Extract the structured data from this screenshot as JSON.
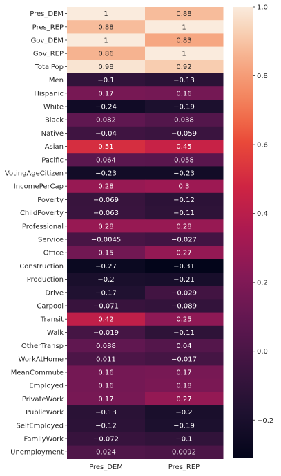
{
  "chart_data": {
    "type": "heatmap",
    "title": "",
    "columns": [
      "Pres_DEM",
      "Pres_REP"
    ],
    "rows": [
      "Pres_DEM",
      "Pres_REP",
      "Gov_DEM",
      "Gov_REP",
      "TotalPop",
      "Men",
      "Hispanic",
      "White",
      "Black",
      "Native",
      "Asian",
      "Pacific",
      "VotingAgeCitizen",
      "IncomePerCap",
      "Poverty",
      "ChildPoverty",
      "Professional",
      "Service",
      "Office",
      "Construction",
      "Production",
      "Drive",
      "Carpool",
      "Transit",
      "Walk",
      "OtherTransp",
      "WorkAtHome",
      "MeanCommute",
      "Employed",
      "PrivateWork",
      "PublicWork",
      "SelfEmployed",
      "FamilyWork",
      "Unemployment"
    ],
    "values": [
      [
        1,
        0.88
      ],
      [
        0.88,
        1
      ],
      [
        1,
        0.83
      ],
      [
        0.86,
        1
      ],
      [
        0.98,
        0.92
      ],
      [
        -0.1,
        -0.13
      ],
      [
        0.17,
        0.16
      ],
      [
        -0.24,
        -0.19
      ],
      [
        0.082,
        0.038
      ],
      [
        -0.04,
        -0.059
      ],
      [
        0.51,
        0.45
      ],
      [
        0.064,
        0.058
      ],
      [
        -0.23,
        -0.23
      ],
      [
        0.28,
        0.3
      ],
      [
        -0.069,
        -0.12
      ],
      [
        -0.063,
        -0.11
      ],
      [
        0.28,
        0.28
      ],
      [
        -0.0045,
        -0.027
      ],
      [
        0.15,
        0.27
      ],
      [
        -0.27,
        -0.31
      ],
      [
        -0.2,
        -0.21
      ],
      [
        -0.17,
        -0.029
      ],
      [
        -0.071,
        -0.089
      ],
      [
        0.42,
        0.25
      ],
      [
        -0.019,
        -0.11
      ],
      [
        0.088,
        0.04
      ],
      [
        0.011,
        -0.017
      ],
      [
        0.16,
        0.17
      ],
      [
        0.16,
        0.18
      ],
      [
        0.17,
        0.27
      ],
      [
        -0.13,
        -0.2
      ],
      [
        -0.12,
        -0.19
      ],
      [
        -0.072,
        -0.1
      ],
      [
        0.024,
        0.0092
      ]
    ],
    "colorbar": {
      "colormap": "rocket",
      "vmin": -0.31,
      "vmax": 1.0,
      "ticks": [
        1.0,
        0.8,
        0.6,
        0.4,
        0.2,
        0.0,
        -0.2
      ],
      "tick_labels": [
        "1.0",
        "0.8",
        "0.6",
        "0.4",
        "0.2",
        "0.0",
        "−0.2"
      ]
    }
  }
}
